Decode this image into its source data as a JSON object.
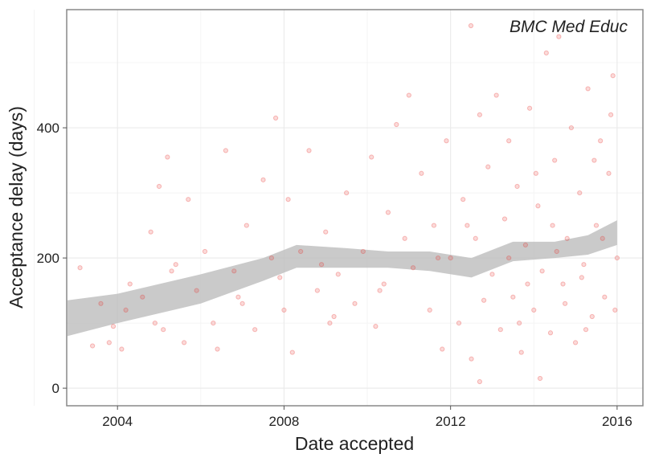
{
  "chart_data": {
    "type": "scatter",
    "x_label": "Date accepted",
    "y_label": "Acceptance delay (days)",
    "xlim": [
      2002.78,
      2016.62
    ],
    "ylim": [
      -27,
      581.5
    ],
    "xticks": [
      2004,
      2008,
      2012,
      2016
    ],
    "yticks": [
      0,
      200,
      400
    ],
    "x_minor_ticks": [
      2002,
      2006,
      2010,
      2014
    ],
    "y_minor_ticks": [
      100,
      300,
      500
    ],
    "grid": true,
    "legend": "top-right",
    "series": [
      {
        "name": "BMC Med Educ",
        "color": "#e8302a",
        "x": [
          2003.1,
          2003.4,
          2003.6,
          2003.8,
          2003.9,
          2004.1,
          2004.2,
          2004.3,
          2004.6,
          2004.8,
          2004.9,
          2005.0,
          2005.1,
          2005.2,
          2005.4,
          2005.6,
          2005.7,
          2005.9,
          2006.1,
          2006.3,
          2006.4,
          2006.6,
          2006.8,
          2007.0,
          2007.1,
          2007.3,
          2007.5,
          2007.7,
          2007.8,
          2008.0,
          2008.1,
          2008.2,
          2008.4,
          2008.6,
          2008.8,
          2009.0,
          2009.1,
          2009.3,
          2009.5,
          2009.7,
          2009.9,
          2010.1,
          2010.2,
          2010.4,
          2010.5,
          2010.7,
          2010.9,
          2011.0,
          2011.1,
          2011.3,
          2011.5,
          2011.6,
          2011.8,
          2011.9,
          2012.0,
          2012.2,
          2012.3,
          2012.5,
          2012.6,
          2012.7,
          2012.8,
          2012.9,
          2013.0,
          2013.1,
          2013.2,
          2013.3,
          2013.4,
          2013.5,
          2013.6,
          2013.7,
          2013.8,
          2013.9,
          2014.0,
          2014.1,
          2014.2,
          2014.3,
          2014.4,
          2014.5,
          2014.6,
          2014.7,
          2014.8,
          2014.9,
          2015.0,
          2015.1,
          2015.2,
          2015.3,
          2015.4,
          2015.5,
          2015.6,
          2015.7,
          2015.8,
          2015.9,
          2016.0,
          2015.95,
          2015.85,
          2014.15,
          2012.7,
          2013.85,
          2014.55,
          2014.75,
          2015.25,
          2015.45,
          2012.4,
          2011.7,
          2010.3,
          2009.2,
          2008.9,
          2007.9,
          2006.9,
          2005.3,
          2013.4,
          2014.05,
          2014.45,
          2015.15,
          2015.65,
          2013.65
        ],
        "values": [
          185,
          65,
          130,
          70,
          95,
          60,
          120,
          160,
          140,
          240,
          100,
          310,
          90,
          355,
          190,
          70,
          290,
          150,
          210,
          100,
          60,
          365,
          180,
          130,
          250,
          90,
          320,
          200,
          415,
          120,
          290,
          55,
          210,
          365,
          150,
          240,
          100,
          175,
          300,
          130,
          210,
          355,
          95,
          160,
          270,
          405,
          230,
          450,
          185,
          330,
          120,
          250,
          60,
          380,
          200,
          100,
          290,
          45,
          230,
          420,
          135,
          340,
          175,
          450,
          90,
          260,
          380,
          140,
          310,
          55,
          220,
          430,
          120,
          280,
          180,
          515,
          85,
          350,
          540,
          160,
          230,
          400,
          70,
          300,
          190,
          460,
          110,
          250,
          380,
          140,
          330,
          480,
          200,
          120,
          420,
          15,
          10,
          160,
          210,
          130,
          90,
          350,
          250,
          200,
          150,
          110,
          190,
          170,
          140,
          180,
          200,
          330,
          250,
          170,
          230,
          100
        ]
      }
    ],
    "band": {
      "x": [
        2002.8,
        2004,
        2006,
        2007.5,
        2008.3,
        2009.5,
        2010.5,
        2011.5,
        2012.5,
        2013.5,
        2014.5,
        2015.3,
        2016
      ],
      "lower": [
        80,
        100,
        130,
        165,
        185,
        185,
        185,
        180,
        170,
        195,
        200,
        205,
        220
      ],
      "upper": [
        135,
        145,
        175,
        200,
        220,
        215,
        210,
        210,
        200,
        225,
        225,
        235,
        258
      ]
    }
  }
}
